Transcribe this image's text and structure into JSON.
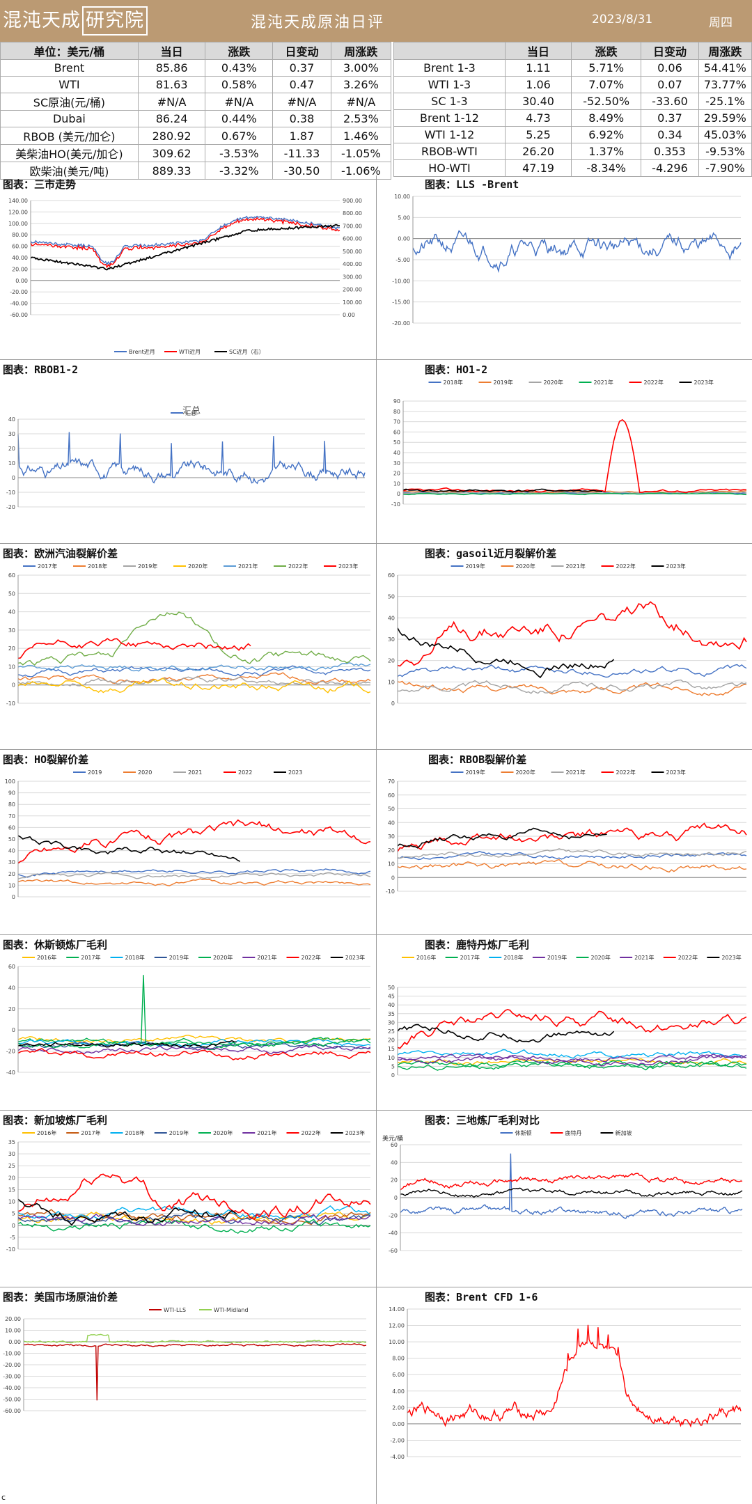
{
  "header": {
    "logo_part1": "混沌天成",
    "logo_part2": "研究院",
    "title": "混沌天成原油日评",
    "date": "2023/8/31",
    "weekday": "周四"
  },
  "table_left": {
    "columns": [
      "单位：美元/桶",
      "当日",
      "涨跌",
      "日变动",
      "周涨跌"
    ],
    "rows": [
      [
        "Brent",
        "85.86",
        "0.43%",
        "0.37",
        "3.00%"
      ],
      [
        "WTI",
        "81.63",
        "0.58%",
        "0.47",
        "3.26%"
      ],
      [
        "SC原油(元/桶)",
        "#N/A",
        "#N/A",
        "#N/A",
        "#N/A"
      ],
      [
        "Dubai",
        "86.24",
        "0.44%",
        "0.38",
        "2.53%"
      ],
      [
        "RBOB (美元/加仑)",
        "280.92",
        "0.67%",
        "1.87",
        "1.46%"
      ],
      [
        "美柴油HO(美元/加仑)",
        "309.62",
        "-3.53%",
        "-11.33",
        "-1.05%"
      ],
      [
        "欧柴油(美元/吨)",
        "889.33",
        "-3.32%",
        "-30.50",
        "-1.06%"
      ]
    ]
  },
  "table_right": {
    "columns": [
      "",
      "当日",
      "涨跌",
      "日变动",
      "周涨跌"
    ],
    "rows": [
      [
        "Brent 1-3",
        "1.11",
        "5.71%",
        "0.06",
        "54.41%"
      ],
      [
        "WTI 1-3",
        "1.06",
        "7.07%",
        "0.07",
        "73.77%"
      ],
      [
        "SC 1-3",
        "30.40",
        "-52.50%",
        "-33.60",
        "-25.1%"
      ],
      [
        "Brent 1-12",
        "4.73",
        "8.49%",
        "0.37",
        "29.59%"
      ],
      [
        "WTI 1-12",
        "5.25",
        "6.92%",
        "0.34",
        "45.03%"
      ],
      [
        "RBOB-WTI",
        "26.20",
        "1.37%",
        "0.353",
        "-9.53%"
      ],
      [
        "HO-WTI",
        "47.19",
        "-8.34%",
        "-4.296",
        "-7.90%"
      ]
    ]
  },
  "sections": {
    "s1": "图表：三市走势",
    "s2": "图表：LLS -Brent",
    "s3": "图表：RBOB1-2",
    "s4": "图表：HO1-2",
    "s5": "图表：欧洲汽油裂解价差",
    "s6": "图表：gasoil近月裂解价差",
    "s7": "图表：HO裂解价差",
    "s8": "图表：RBOB裂解价差",
    "s9": "图表：休斯顿炼厂毛利",
    "s10": "图表：鹿特丹炼厂毛利",
    "s11": "图表：新加坡炼厂毛利",
    "s12": "图表：三地炼厂毛利对比",
    "s13": "图表：美国市场原油价差",
    "s14": "图表：Brent CFD 1-6"
  },
  "footer_mark": "c",
  "chart_data": [
    {
      "id": "c1",
      "type": "line",
      "title": "",
      "ylim": [
        -60,
        140
      ],
      "yticks": [
        "140.00",
        "120.00",
        "100.00",
        "80.00",
        "60.00",
        "40.00",
        "20.00",
        "0.00",
        "-20.00",
        "-40.00",
        "-60.00"
      ],
      "y2ticks": [
        "900.00",
        "800.00",
        "700.00",
        "600.00",
        "500.00",
        "400.00",
        "300.00",
        "200.00",
        "100.00",
        "0.00"
      ],
      "series": [
        {
          "name": "Brent近月",
          "color": "#4472c4"
        },
        {
          "name": "WTI近月",
          "color": "#ff0000"
        },
        {
          "name": "SC近月（右）",
          "color": "#000000"
        }
      ]
    },
    {
      "id": "c2",
      "type": "line",
      "title": "",
      "ylim": [
        -20,
        10
      ],
      "yticks": [
        "10.00",
        "5.00",
        "0.00",
        "-5.00",
        "-10.00",
        "-15.00",
        "-20.00"
      ],
      "series": [
        {
          "name": "",
          "color": "#4472c4"
        }
      ]
    },
    {
      "id": "c3",
      "type": "line",
      "title": "汇总",
      "ylim": [
        -20,
        40
      ],
      "yticks": [
        "40",
        "30",
        "20",
        "10",
        "0",
        "-10",
        "-20"
      ],
      "series": [
        {
          "name": "汇总",
          "color": "#4472c4"
        }
      ]
    },
    {
      "id": "c4",
      "type": "line",
      "title": "",
      "ylim": [
        -10,
        90
      ],
      "yticks": [
        "90",
        "80",
        "70",
        "60",
        "50",
        "40",
        "30",
        "20",
        "10",
        "0",
        "-10"
      ],
      "series": [
        {
          "name": "2018年",
          "color": "#4472c4"
        },
        {
          "name": "2019年",
          "color": "#ed7d31"
        },
        {
          "name": "2020年",
          "color": "#a5a5a5"
        },
        {
          "name": "2021年",
          "color": "#00b050"
        },
        {
          "name": "2022年",
          "color": "#ff0000"
        },
        {
          "name": "2023年",
          "color": "#000000"
        }
      ]
    },
    {
      "id": "c5",
      "type": "line",
      "title": "",
      "ylim": [
        -10,
        60
      ],
      "yticks": [
        "60",
        "50",
        "40",
        "30",
        "20",
        "10",
        "0",
        "-10"
      ],
      "series": [
        {
          "name": "2017年",
          "color": "#4472c4"
        },
        {
          "name": "2018年",
          "color": "#ed7d31"
        },
        {
          "name": "2019年",
          "color": "#a5a5a5"
        },
        {
          "name": "2020年",
          "color": "#ffc000"
        },
        {
          "name": "2021年",
          "color": "#5b9bd5"
        },
        {
          "name": "2022年",
          "color": "#70ad47"
        },
        {
          "name": "2023年",
          "color": "#ff0000"
        }
      ]
    },
    {
      "id": "c6",
      "type": "line",
      "title": "",
      "ylim": [
        0,
        60
      ],
      "yticks": [
        "60",
        "50",
        "40",
        "30",
        "20",
        "10",
        "0"
      ],
      "series": [
        {
          "name": "2019年",
          "color": "#4472c4"
        },
        {
          "name": "2020年",
          "color": "#ed7d31"
        },
        {
          "name": "2021年",
          "color": "#a5a5a5"
        },
        {
          "name": "2022年",
          "color": "#ff0000"
        },
        {
          "name": "2023年",
          "color": "#000000"
        }
      ]
    },
    {
      "id": "c7",
      "type": "line",
      "title": "",
      "ylim": [
        0,
        100
      ],
      "yticks": [
        "100",
        "90",
        "80",
        "70",
        "60",
        "50",
        "40",
        "30",
        "20",
        "10",
        "0"
      ],
      "series": [
        {
          "name": "2019",
          "color": "#4472c4"
        },
        {
          "name": "2020",
          "color": "#ed7d31"
        },
        {
          "name": "2021",
          "color": "#a5a5a5"
        },
        {
          "name": "2022",
          "color": "#ff0000"
        },
        {
          "name": "2023",
          "color": "#000000"
        }
      ]
    },
    {
      "id": "c8",
      "type": "line",
      "title": "",
      "ylim": [
        -10,
        70
      ],
      "yticks": [
        "70",
        "60",
        "50",
        "40",
        "30",
        "20",
        "10",
        "0",
        "-10"
      ],
      "series": [
        {
          "name": "2019年",
          "color": "#4472c4"
        },
        {
          "name": "2020年",
          "color": "#ed7d31"
        },
        {
          "name": "2021年",
          "color": "#a5a5a5"
        },
        {
          "name": "2022年",
          "color": "#ff0000"
        },
        {
          "name": "2023年",
          "color": "#000000"
        }
      ]
    },
    {
      "id": "c9",
      "type": "line",
      "title": "",
      "ylim": [
        -40,
        60
      ],
      "yticks": [
        "60",
        "40",
        "20",
        "0",
        "-20",
        "-40"
      ],
      "series": [
        {
          "name": "2016年",
          "color": "#ffc000"
        },
        {
          "name": "2017年",
          "color": "#00b050"
        },
        {
          "name": "2018年",
          "color": "#00b0f0"
        },
        {
          "name": "2019年",
          "color": "#2f5597"
        },
        {
          "name": "2020年",
          "color": "#00b050"
        },
        {
          "name": "2021年",
          "color": "#7030a0"
        },
        {
          "name": "2022年",
          "color": "#ff0000"
        },
        {
          "name": "2023年",
          "color": "#000000"
        }
      ]
    },
    {
      "id": "c10",
      "type": "line",
      "title": "",
      "ylim": [
        0,
        50
      ],
      "yticks": [
        "50",
        "45",
        "40",
        "35",
        "30",
        "25",
        "20",
        "15",
        "10",
        "5",
        "0"
      ],
      "series": [
        {
          "name": "2016年",
          "color": "#ffc000"
        },
        {
          "name": "2017年",
          "color": "#00b050"
        },
        {
          "name": "2018年",
          "color": "#00b0f0"
        },
        {
          "name": "2019年",
          "color": "#7030a0"
        },
        {
          "name": "2020年",
          "color": "#00b050"
        },
        {
          "name": "2021年",
          "color": "#7030a0"
        },
        {
          "name": "2022年",
          "color": "#ff0000"
        },
        {
          "name": "2023年",
          "color": "#000000"
        }
      ]
    },
    {
      "id": "c11",
      "type": "line",
      "title": "",
      "ylim": [
        -10,
        35
      ],
      "yticks": [
        "35",
        "30",
        "25",
        "20",
        "15",
        "10",
        "5",
        "0",
        "-5",
        "-10"
      ],
      "series": [
        {
          "name": "2016年",
          "color": "#ffc000"
        },
        {
          "name": "2017年",
          "color": "#c55a11"
        },
        {
          "name": "2018年",
          "color": "#00b0f0"
        },
        {
          "name": "2019年",
          "color": "#2f5597"
        },
        {
          "name": "2020年",
          "color": "#00b050"
        },
        {
          "name": "2021年",
          "color": "#7030a0"
        },
        {
          "name": "2022年",
          "color": "#ff0000"
        },
        {
          "name": "2023年",
          "color": "#000000"
        }
      ]
    },
    {
      "id": "c12",
      "type": "line",
      "title": "",
      "ylabel": "美元/桶",
      "ylim": [
        -60,
        60
      ],
      "yticks": [
        "60",
        "40",
        "20",
        "0",
        "-20",
        "-40",
        "-60"
      ],
      "series": [
        {
          "name": "休斯顿",
          "color": "#4472c4"
        },
        {
          "name": "鹿特丹",
          "color": "#ff0000"
        },
        {
          "name": "新加坡",
          "color": "#000000"
        }
      ]
    },
    {
      "id": "c13",
      "type": "line",
      "title": "",
      "ylim": [
        -60,
        20
      ],
      "yticks": [
        "20.00",
        "10.00",
        "0.00",
        "-10.00",
        "-20.00",
        "-30.00",
        "-40.00",
        "-50.00",
        "-60.00"
      ],
      "series": [
        {
          "name": "WTI-LLS",
          "color": "#c00000"
        },
        {
          "name": "WTI-Midland",
          "color": "#92d050"
        }
      ]
    },
    {
      "id": "c14",
      "type": "line",
      "title": "",
      "ylim": [
        -4,
        14
      ],
      "yticks": [
        "14.00",
        "12.00",
        "10.00",
        "8.00",
        "6.00",
        "4.00",
        "2.00",
        "0.00",
        "-2.00",
        "-4.00"
      ],
      "series": [
        {
          "name": "",
          "color": "#ff0000"
        }
      ]
    }
  ]
}
